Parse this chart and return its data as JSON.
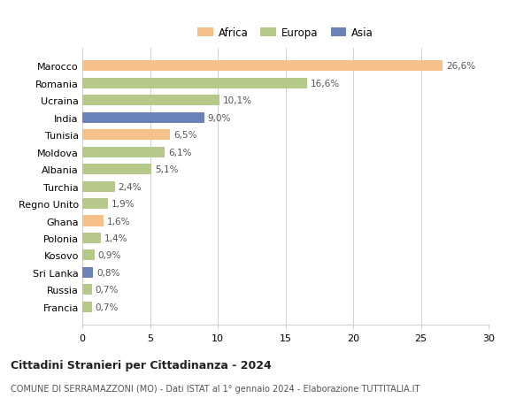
{
  "countries": [
    "Marocco",
    "Romania",
    "Ucraina",
    "India",
    "Tunisia",
    "Moldova",
    "Albania",
    "Turchia",
    "Regno Unito",
    "Ghana",
    "Polonia",
    "Kosovo",
    "Sri Lanka",
    "Russia",
    "Francia"
  ],
  "values": [
    26.6,
    16.6,
    10.1,
    9.0,
    6.5,
    6.1,
    5.1,
    2.4,
    1.9,
    1.6,
    1.4,
    0.9,
    0.8,
    0.7,
    0.7
  ],
  "labels": [
    "26,6%",
    "16,6%",
    "10,1%",
    "9,0%",
    "6,5%",
    "6,1%",
    "5,1%",
    "2,4%",
    "1,9%",
    "1,6%",
    "1,4%",
    "0,9%",
    "0,8%",
    "0,7%",
    "0,7%"
  ],
  "continents": [
    "Africa",
    "Europa",
    "Europa",
    "Asia",
    "Africa",
    "Europa",
    "Europa",
    "Europa",
    "Europa",
    "Africa",
    "Europa",
    "Europa",
    "Asia",
    "Europa",
    "Europa"
  ],
  "colors": {
    "Africa": "#F5C08A",
    "Europa": "#B5C98A",
    "Asia": "#6B82B8"
  },
  "xlim": [
    0,
    30
  ],
  "xticks": [
    0,
    5,
    10,
    15,
    20,
    25,
    30
  ],
  "title": "Cittadini Stranieri per Cittadinanza - 2024",
  "subtitle": "COMUNE DI SERRAMAZZONI (MO) - Dati ISTAT al 1° gennaio 2024 - Elaborazione TUTTITALIA.IT",
  "background_color": "#ffffff",
  "grid_color": "#d0d0d0"
}
